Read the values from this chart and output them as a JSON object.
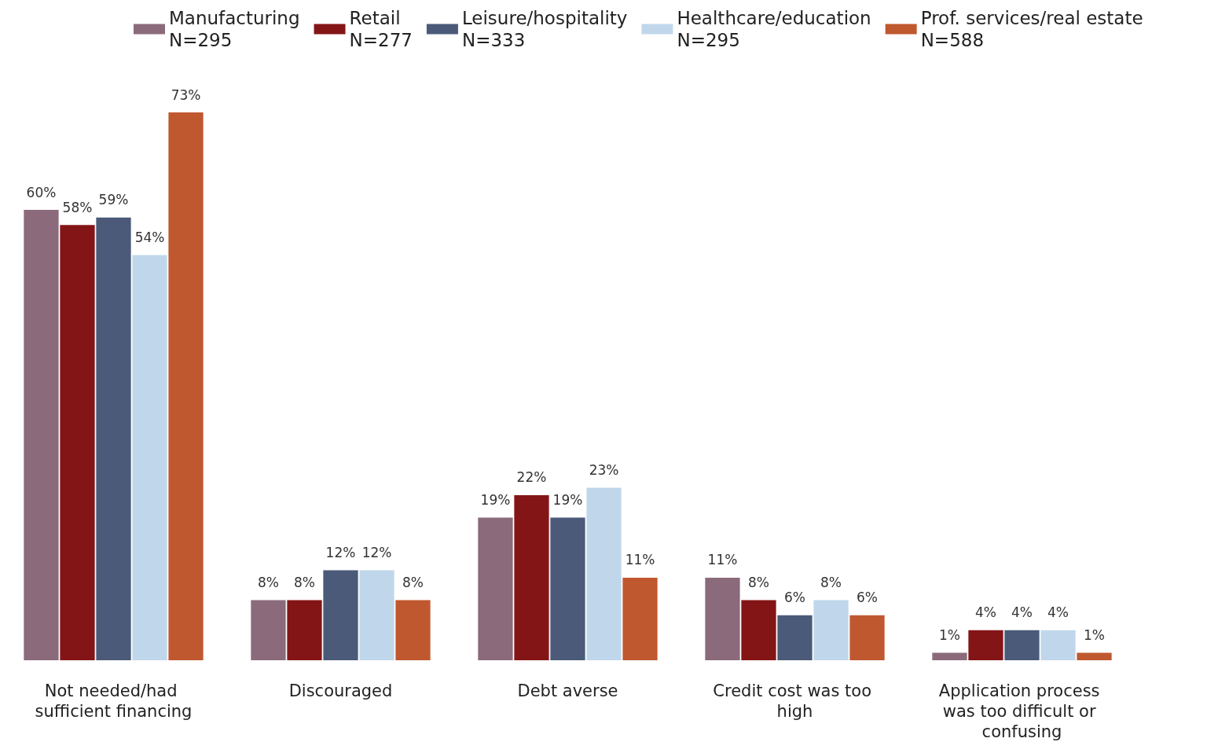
{
  "chart_data": {
    "type": "bar",
    "categories": [
      "Not needed/had sufficient financing",
      "Discouraged",
      "Debt averse",
      "Credit cost was too high",
      "Application process was too difficult or confusing"
    ],
    "series": [
      {
        "name": "Manufacturing\nN=295",
        "color": "#8a6a7b",
        "values": [
          60,
          8,
          19,
          11,
          1
        ],
        "value_labels": [
          "60%",
          "8%",
          "19%",
          "11%",
          "1%"
        ]
      },
      {
        "name": "Retail\nN=277",
        "color": "#841517",
        "values": [
          58,
          8,
          22,
          8,
          4
        ],
        "value_labels": [
          "58%",
          "8%",
          "22%",
          "8%",
          "4%"
        ]
      },
      {
        "name": "Leisure/hospitality\nN=333",
        "color": "#4a5a78",
        "values": [
          59,
          12,
          19,
          6,
          4
        ],
        "value_labels": [
          "59%",
          "12%",
          "19%",
          "6%",
          "4%"
        ]
      },
      {
        "name": "Healthcare/education\nN=295",
        "color": "#c0d7eb",
        "values": [
          54,
          12,
          23,
          8,
          4
        ],
        "value_labels": [
          "54%",
          "12%",
          "23%",
          "8%",
          "4%"
        ]
      },
      {
        "name": "Prof. services/real estate\nN=588",
        "color": "#c0582f",
        "values": [
          73,
          8,
          11,
          6,
          1
        ],
        "value_labels": [
          "73%",
          "8%",
          "11%",
          "6%",
          "1%"
        ]
      }
    ],
    "legend": "top"
  }
}
